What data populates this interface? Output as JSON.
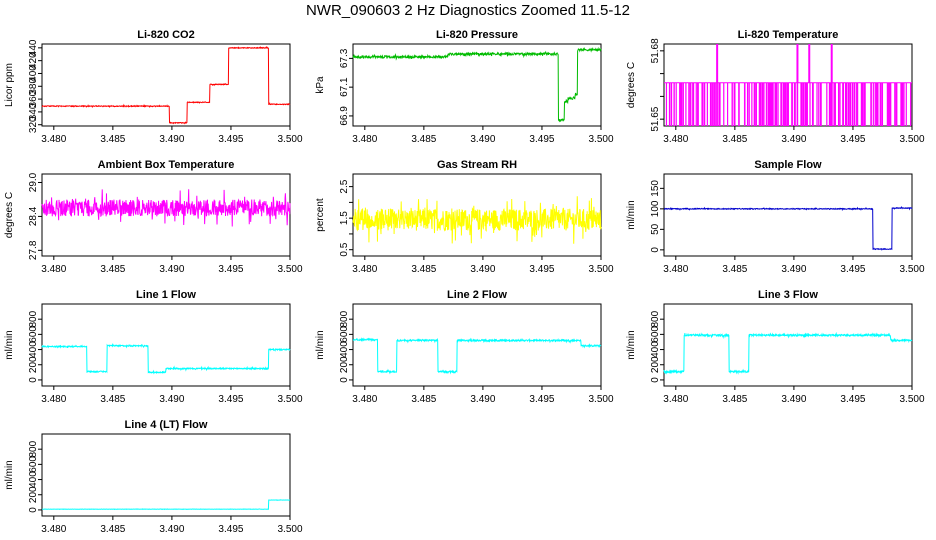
{
  "page_title": "NWR_090603  2 Hz Diagnostics Zoomed 11.5-12",
  "chart_data": [
    {
      "type": "line",
      "title": "Li-820 CO2",
      "ylabel": "Licor ppm",
      "color": "#ff0000",
      "xlim": [
        3.479,
        3.5
      ],
      "ylim": [
        318,
        446
      ],
      "xticks": [
        3.48,
        3.485,
        3.49,
        3.495,
        3.5
      ],
      "yticks": [
        320,
        340,
        360,
        380,
        400,
        420,
        440
      ],
      "noise": 0.6,
      "steps": [
        [
          3.479,
          349
        ],
        [
          3.4898,
          323
        ],
        [
          3.4913,
          355
        ],
        [
          3.4932,
          383
        ],
        [
          3.4948,
          440
        ],
        [
          3.4982,
          352
        ],
        [
          3.5,
          352
        ]
      ]
    },
    {
      "type": "line",
      "title": "Li-820 Pressure",
      "ylabel": "kPa",
      "color": "#00bb00",
      "xlim": [
        3.479,
        3.5
      ],
      "ylim": [
        66.83,
        67.4
      ],
      "xticks": [
        3.48,
        3.485,
        3.49,
        3.495,
        3.5
      ],
      "yticks": [
        66.9,
        67.1,
        67.3
      ],
      "noise": 0.008,
      "steps": [
        [
          3.479,
          67.31
        ],
        [
          3.487,
          67.33
        ],
        [
          3.4962,
          67.33
        ],
        [
          3.4964,
          66.87
        ],
        [
          3.4969,
          67.0
        ],
        [
          3.4972,
          67.02
        ],
        [
          3.4978,
          67.05
        ],
        [
          3.498,
          67.36
        ],
        [
          3.5,
          67.35
        ]
      ]
    },
    {
      "type": "line",
      "title": "Li-820 Temperature",
      "ylabel": "degrees C",
      "color": "#ff00ff",
      "xlim": [
        3.479,
        3.5
      ],
      "ylim": [
        51.647,
        51.683
      ],
      "xticks": [
        3.48,
        3.485,
        3.49,
        3.495,
        3.5
      ],
      "yticks": [
        51.65,
        51.66,
        51.67,
        51.68
      ],
      "ytick_labels": [
        "51.65",
        "",
        "",
        "51.68"
      ],
      "noise": 0,
      "steps": [
        [
          3.479,
          51.666
        ],
        [
          3.5,
          51.666
        ]
      ],
      "spikes": [
        [
          3.4835,
          51.683
        ],
        [
          3.4903,
          51.683
        ],
        [
          3.4913,
          51.683
        ],
        [
          3.4932,
          51.683
        ]
      ]
    },
    {
      "type": "line",
      "title": "Ambient Box Temperature",
      "ylabel": "degrees C",
      "color": "#ff00ff",
      "xlim": [
        3.479,
        3.5
      ],
      "ylim": [
        27.7,
        29.15
      ],
      "xticks": [
        3.48,
        3.485,
        3.49,
        3.495,
        3.5
      ],
      "yticks": [
        27.8,
        28.4,
        29.0
      ],
      "noise": 0.15,
      "steps": [
        [
          3.479,
          28.55
        ],
        [
          3.5,
          28.55
        ]
      ]
    },
    {
      "type": "line",
      "title": "Gas Stream RH",
      "ylabel": "percent",
      "color": "#ffff00",
      "xlim": [
        3.479,
        3.5
      ],
      "ylim": [
        0.3,
        2.9
      ],
      "xticks": [
        3.48,
        3.485,
        3.49,
        3.495,
        3.5
      ],
      "yticks": [
        0.5,
        1.0,
        1.5,
        2.0,
        2.5
      ],
      "ytick_labels": [
        "0.5",
        "",
        "1.5",
        "",
        "2.5"
      ],
      "noise": 0.35,
      "steps": [
        [
          3.479,
          1.45
        ],
        [
          3.5,
          1.45
        ]
      ]
    },
    {
      "type": "line",
      "title": "Sample Flow",
      "ylabel": "ml/min",
      "color": "#0000cc",
      "xlim": [
        3.479,
        3.5
      ],
      "ylim": [
        -15,
        185
      ],
      "xticks": [
        3.48,
        3.485,
        3.49,
        3.495,
        3.5
      ],
      "yticks": [
        0,
        50,
        100,
        150
      ],
      "noise": 1.0,
      "steps": [
        [
          3.479,
          100
        ],
        [
          3.4967,
          2
        ],
        [
          3.4983,
          102
        ],
        [
          3.5,
          102
        ]
      ]
    },
    {
      "type": "line",
      "title": "Line 1 Flow",
      "ylabel": "ml/min",
      "color": "#00ffff",
      "xlim": [
        3.479,
        3.5
      ],
      "ylim": [
        -80,
        1000
      ],
      "xticks": [
        3.48,
        3.485,
        3.49,
        3.495,
        3.5
      ],
      "yticks": [
        0,
        200,
        400,
        600,
        800
      ],
      "noise": 8,
      "steps": [
        [
          3.479,
          440
        ],
        [
          3.4828,
          110
        ],
        [
          3.4845,
          450
        ],
        [
          3.488,
          100
        ],
        [
          3.4895,
          150
        ],
        [
          3.4982,
          400
        ],
        [
          3.5,
          400
        ]
      ]
    },
    {
      "type": "line",
      "title": "Line 2 Flow",
      "ylabel": "ml/min",
      "color": "#00ffff",
      "xlim": [
        3.479,
        3.5
      ],
      "ylim": [
        -80,
        1000
      ],
      "xticks": [
        3.48,
        3.485,
        3.49,
        3.495,
        3.5
      ],
      "yticks": [
        0,
        200,
        400,
        600,
        800
      ],
      "noise": 10,
      "steps": [
        [
          3.479,
          530
        ],
        [
          3.4811,
          110
        ],
        [
          3.4827,
          520
        ],
        [
          3.4862,
          110
        ],
        [
          3.4878,
          520
        ],
        [
          3.4983,
          450
        ],
        [
          3.5,
          450
        ]
      ]
    },
    {
      "type": "line",
      "title": "Line 3 Flow",
      "ylabel": "ml/min",
      "color": "#00ffff",
      "xlim": [
        3.479,
        3.5
      ],
      "ylim": [
        -80,
        1000
      ],
      "xticks": [
        3.48,
        3.485,
        3.49,
        3.495,
        3.5
      ],
      "yticks": [
        0,
        200,
        400,
        600,
        800
      ],
      "noise": 12,
      "steps": [
        [
          3.479,
          110
        ],
        [
          3.4807,
          590
        ],
        [
          3.4845,
          110
        ],
        [
          3.4862,
          590
        ],
        [
          3.4982,
          520
        ],
        [
          3.5,
          520
        ]
      ]
    },
    {
      "type": "line",
      "title": "Line 4 (LT) Flow",
      "ylabel": "ml/min",
      "color": "#00ffff",
      "xlim": [
        3.479,
        3.5
      ],
      "ylim": [
        -80,
        1000
      ],
      "xticks": [
        3.48,
        3.485,
        3.49,
        3.495,
        3.5
      ],
      "yticks": [
        0,
        200,
        400,
        600,
        800
      ],
      "noise": 1.5,
      "steps": [
        [
          3.479,
          10
        ],
        [
          3.4982,
          130
        ],
        [
          3.5,
          130
        ]
      ]
    }
  ]
}
